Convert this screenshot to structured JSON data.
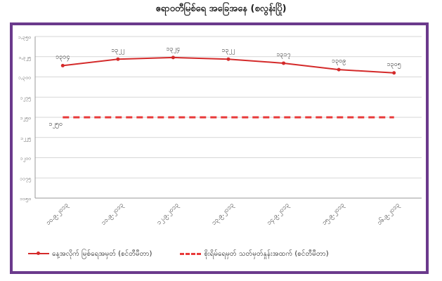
{
  "chart_data": {
    "type": "line",
    "title": "ဧရာဝတီမြစ်ရေ အခြေအနေ (စလွန်းပြို)",
    "xlabel": "",
    "ylabel": "",
    "categories": [
      "၁၀.၉.၂၀၁၃",
      "၁၁.၉.၂၀၁၃",
      "၁၂.၉.၂၀၁၃",
      "၁၃.၉.၂၀၁၃",
      "၁၄.၉.၂၀၁၃",
      "၁၅.၉.၂၀၁၃",
      "၁၆.၉.၂၀၁၃"
    ],
    "y_ticks": [
      "၁,၃၅၀",
      "၁,၃၂၅",
      "၁,၃၀၀",
      "၁၂၇၅",
      "၁၂၅၀",
      "၁၂၂၅",
      "၁၂၀၀",
      "၁၁၇၅",
      "၁၁၅၀"
    ],
    "ylim": [
      1150,
      1350
    ],
    "grid": true,
    "legend_position": "bottom",
    "series": [
      {
        "name": "နေ့အလိုက် မြစ်ရေအမှတ် (စင်တီမီတာ)",
        "color": "#d42a2a",
        "style": "solid",
        "values": [
          1314,
          1322,
          1324,
          1322,
          1317,
          1309,
          1305
        ],
        "labels": [
          "၁၃၁၄",
          "၁၃၂၂",
          "၁၃၂၄",
          "၁၃၂၂",
          "၁၃၁၇",
          "၁၃၀၉",
          "၁၃၀၅"
        ]
      },
      {
        "name": "စိုးရိမ်ရေမှတ် သတ်မှတ်နှုန်းအထက် (စင်တီမီတာ)",
        "color": "#e83a3a",
        "style": "dashed",
        "values": [
          1250,
          1250,
          1250,
          1250,
          1250,
          1250,
          1250
        ],
        "labels": [
          "၁၂၅၀"
        ]
      }
    ]
  }
}
